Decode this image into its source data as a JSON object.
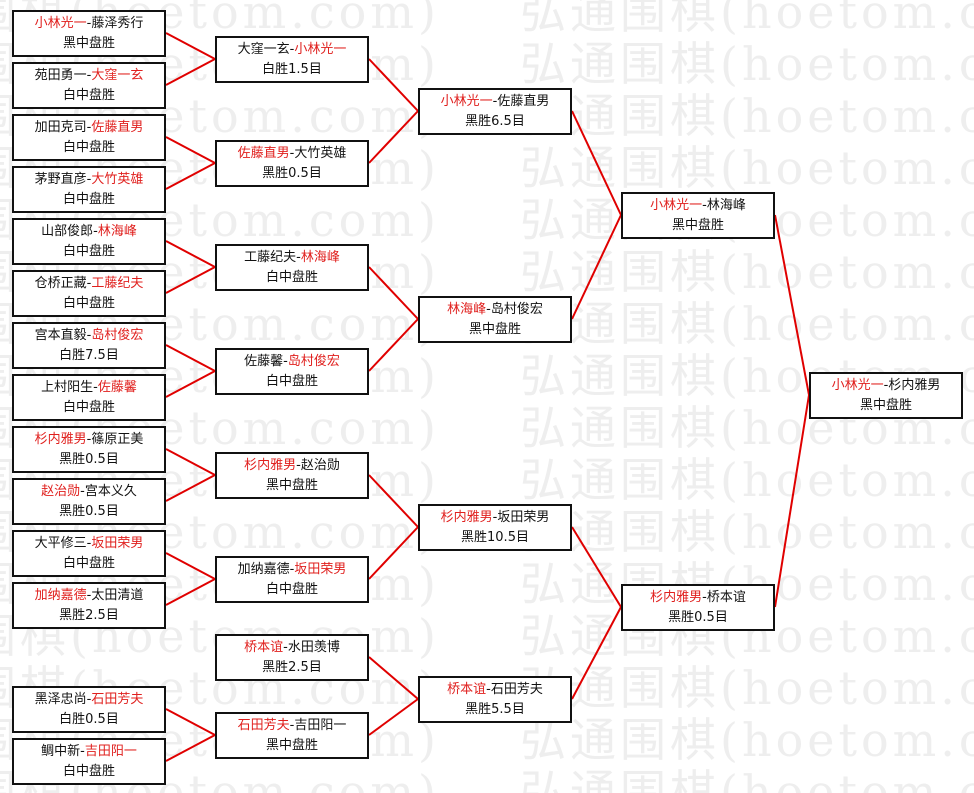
{
  "watermark": "弘通围棋(hoetom.com)",
  "colors": {
    "winner": "#e0201e",
    "line": "#e00000",
    "border": "#111111"
  },
  "separator": "-",
  "rounds": [
    [
      {
        "a": "小林光一",
        "b": "藤泽秀行",
        "winner": 0,
        "result": "黑中盘胜"
      },
      {
        "a": "苑田勇一",
        "b": "大窪一玄",
        "winner": 1,
        "result": "白中盘胜"
      },
      {
        "a": "加田克司",
        "b": "佐藤直男",
        "winner": 1,
        "result": "白中盘胜"
      },
      {
        "a": "茅野直彦",
        "b": "大竹英雄",
        "winner": 1,
        "result": "白中盘胜"
      },
      {
        "a": "山部俊郎",
        "b": "林海峰",
        "winner": 1,
        "result": "白中盘胜"
      },
      {
        "a": "仓桥正藏",
        "b": "工藤纪夫",
        "winner": 1,
        "result": "白中盘胜"
      },
      {
        "a": "宫本直毅",
        "b": "岛村俊宏",
        "winner": 1,
        "result": "白胜7.5目"
      },
      {
        "a": "上村阳生",
        "b": "佐藤馨",
        "winner": 1,
        "result": "白中盘胜"
      },
      {
        "a": "杉内雅男",
        "b": "篠原正美",
        "winner": 0,
        "result": "黑胜0.5目"
      },
      {
        "a": "赵治勋",
        "b": "宫本义久",
        "winner": 0,
        "result": "黑胜0.5目"
      },
      {
        "a": "大平修三",
        "b": "坂田荣男",
        "winner": 1,
        "result": "白中盘胜"
      },
      {
        "a": "加纳嘉德",
        "b": "太田清道",
        "winner": 0,
        "result": "黑胜2.5目"
      },
      {
        "a": "黑泽忠尚",
        "b": "石田芳夫",
        "winner": 1,
        "result": "白胜0.5目"
      },
      {
        "a": "鲷中新",
        "b": "吉田阳一",
        "winner": 1,
        "result": "白中盘胜"
      }
    ],
    [
      {
        "a": "大窪一玄",
        "b": "小林光一",
        "winner": 1,
        "result": "白胜1.5目"
      },
      {
        "a": "佐藤直男",
        "b": "大竹英雄",
        "winner": 0,
        "result": "黑胜0.5目"
      },
      {
        "a": "工藤纪夫",
        "b": "林海峰",
        "winner": 1,
        "result": "白中盘胜"
      },
      {
        "a": "佐藤馨",
        "b": "岛村俊宏",
        "winner": 1,
        "result": "白中盘胜"
      },
      {
        "a": "杉内雅男",
        "b": "赵治勋",
        "winner": 0,
        "result": "黑中盘胜"
      },
      {
        "a": "加纳嘉德",
        "b": "坂田荣男",
        "winner": 1,
        "result": "白中盘胜"
      },
      {
        "a": "桥本谊",
        "b": "水田羡博",
        "winner": 0,
        "result": "黑胜2.5目"
      },
      {
        "a": "石田芳夫",
        "b": "吉田阳一",
        "winner": 0,
        "result": "黑中盘胜"
      }
    ],
    [
      {
        "a": "小林光一",
        "b": "佐藤直男",
        "winner": 0,
        "result": "黑胜6.5目"
      },
      {
        "a": "林海峰",
        "b": "岛村俊宏",
        "winner": 0,
        "result": "黑中盘胜"
      },
      {
        "a": "杉内雅男",
        "b": "坂田荣男",
        "winner": 0,
        "result": "黑胜10.5目"
      },
      {
        "a": "桥本谊",
        "b": "石田芳夫",
        "winner": 0,
        "result": "黑胜5.5目"
      }
    ],
    [
      {
        "a": "小林光一",
        "b": "林海峰",
        "winner": 0,
        "result": "黑中盘胜"
      },
      {
        "a": "杉内雅男",
        "b": "桥本谊",
        "winner": 0,
        "result": "黑胜0.5目"
      }
    ],
    [
      {
        "a": "小林光一",
        "b": "杉内雅男",
        "winner": 0,
        "result": "黑中盘胜"
      }
    ]
  ]
}
